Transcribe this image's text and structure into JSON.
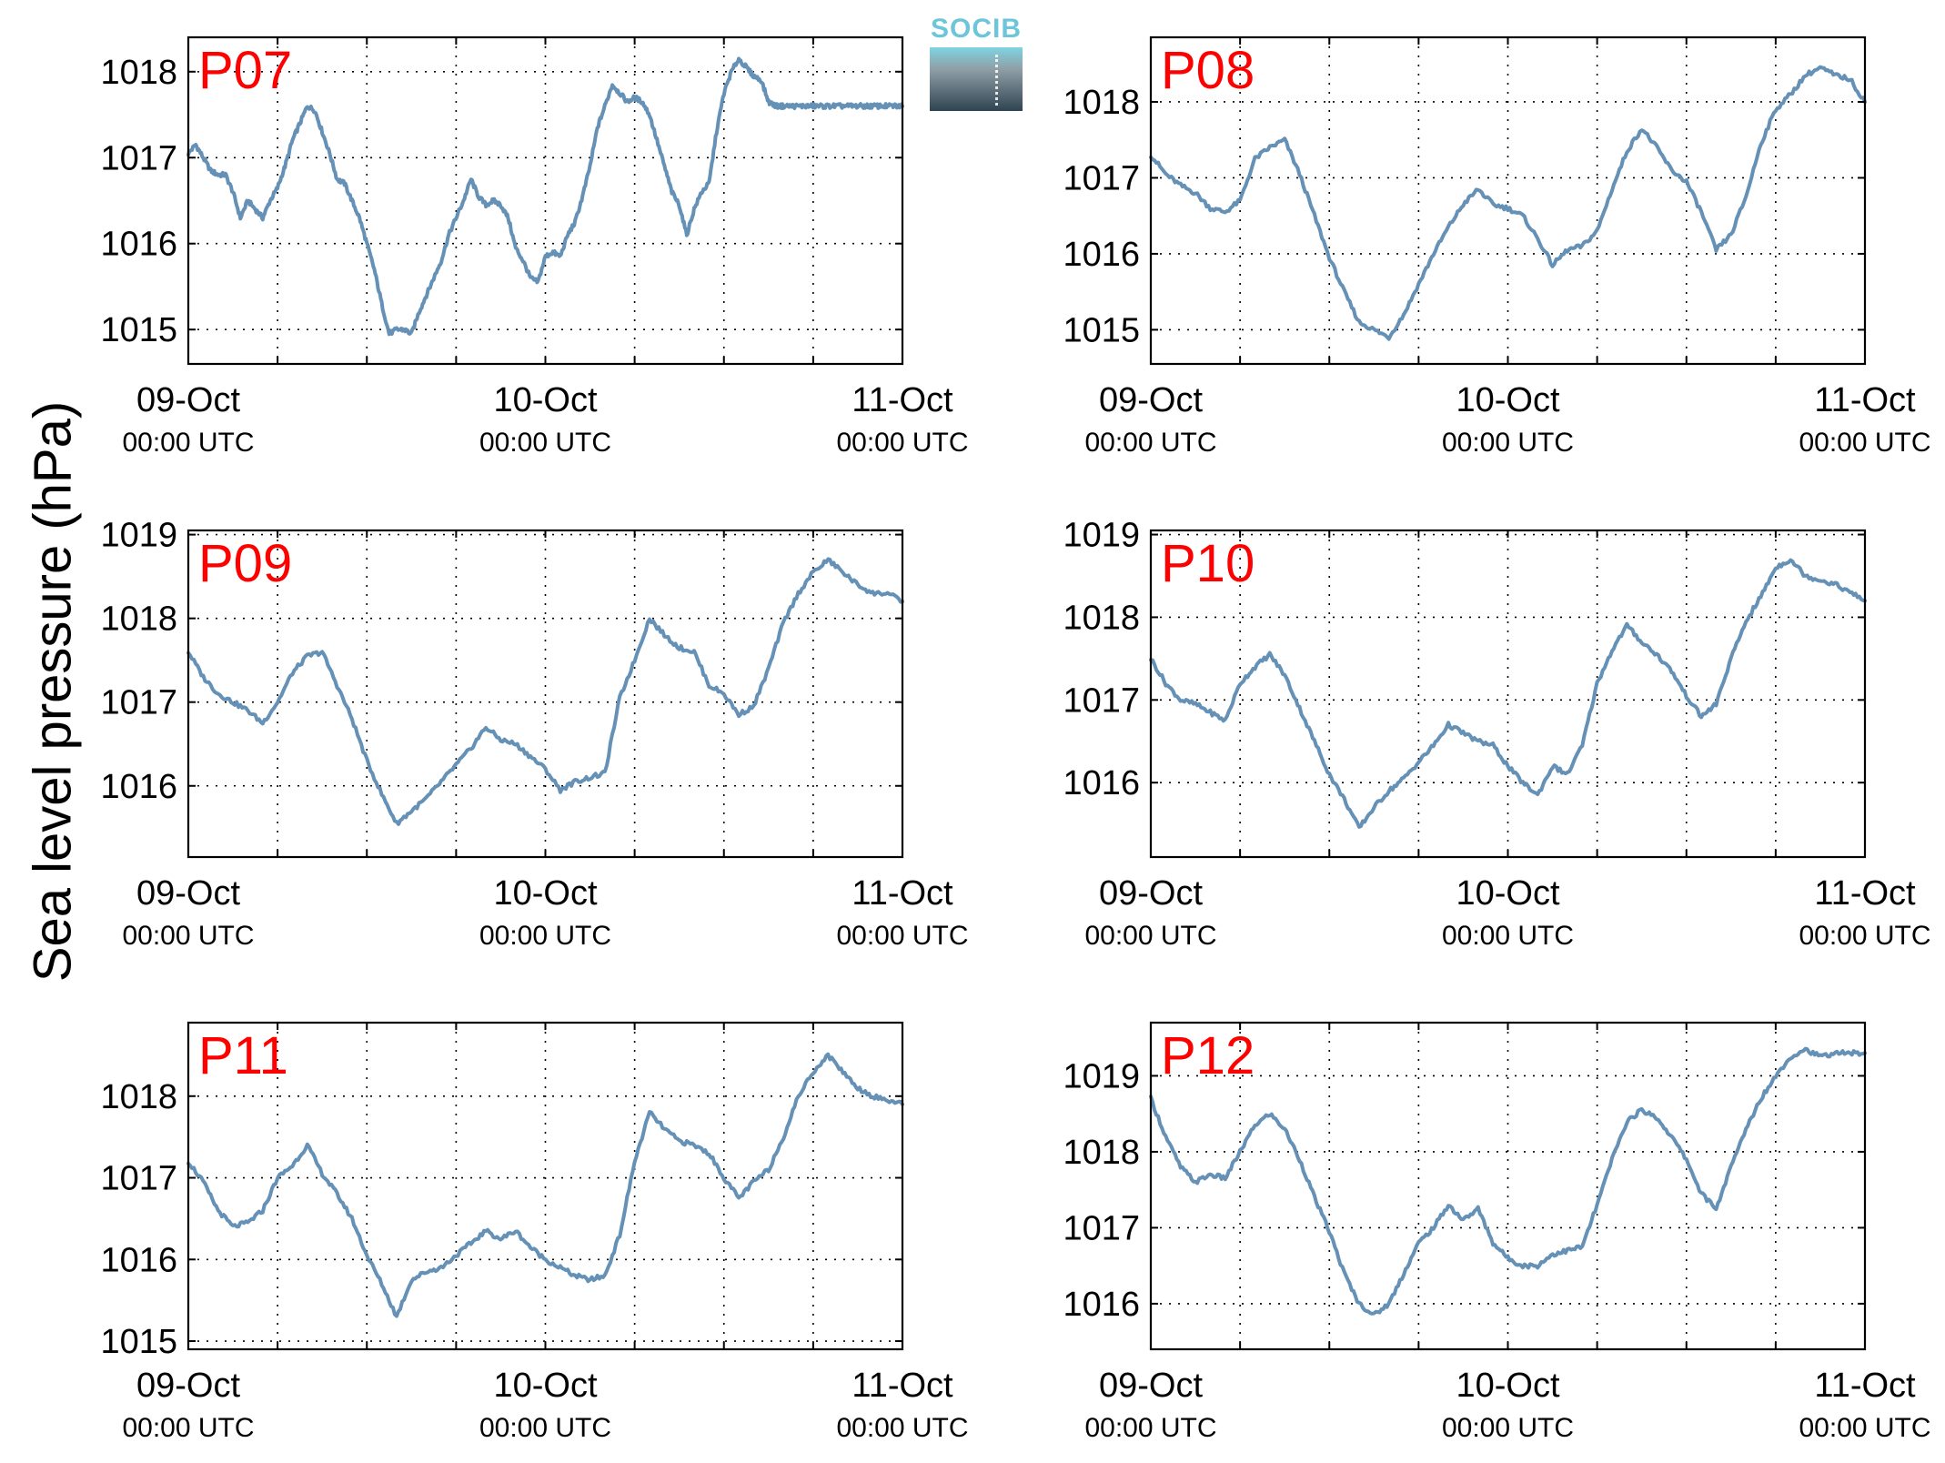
{
  "figure": {
    "ylabel": "Sea level pressure (hPa)",
    "logo_text": "SOCIB",
    "line_color": "#6591b6",
    "panel_label_color": "#ff0000",
    "x_ticks": [
      {
        "date": "09-Oct",
        "time": "00:00 UTC"
      },
      {
        "date": "10-Oct",
        "time": "00:00 UTC"
      },
      {
        "date": "11-Oct",
        "time": "00:00 UTC"
      }
    ]
  },
  "chart_data": [
    {
      "type": "line",
      "title": "P07",
      "xlabel": "",
      "ylabel": "Sea level pressure (hPa)",
      "xlim_hours": [
        0,
        48
      ],
      "ylim": [
        1014.6,
        1018.4
      ],
      "yticks": [
        1015,
        1016,
        1017,
        1018
      ],
      "grid": true,
      "series": [
        {
          "x_hours": [
            0,
            0.5,
            1,
            1.5,
            2,
            2.5,
            3,
            3.5,
            4,
            4.5,
            5,
            5.5,
            6,
            6.5,
            7,
            7.5,
            8,
            8.5,
            9,
            9.5,
            10,
            10.5,
            11,
            11.5,
            12,
            12.5,
            13,
            13.5,
            14,
            14.5,
            15,
            15.5,
            16,
            16.5,
            17,
            17.5,
            18,
            18.5,
            19,
            19.5,
            20,
            20.5,
            21,
            21.5,
            22,
            22.5,
            23,
            23.5,
            24,
            24.5,
            25,
            25.5,
            26,
            26.5,
            27,
            27.5,
            28,
            28.5,
            29,
            29.5,
            30,
            30.5,
            31,
            31.5,
            32,
            32.5,
            33,
            33.5,
            34,
            34.5,
            35,
            35.5,
            36,
            36.5,
            37,
            37.5,
            38,
            38.5,
            39,
            39.5,
            40,
            40.5,
            41,
            41.5,
            42,
            42.5,
            43,
            43.5,
            44,
            44.5,
            45,
            45.5,
            46,
            46.5,
            47,
            47.5,
            48
          ],
          "values": [
            1017.05,
            1017.15,
            1017.0,
            1016.85,
            1016.8,
            1016.8,
            1016.6,
            1016.3,
            1016.5,
            1016.4,
            1016.3,
            1016.5,
            1016.65,
            1016.9,
            1017.2,
            1017.4,
            1017.6,
            1017.55,
            1017.3,
            1017.05,
            1016.75,
            1016.7,
            1016.5,
            1016.3,
            1016.0,
            1015.7,
            1015.3,
            1014.95,
            1015.0,
            1015.0,
            1014.95,
            1015.2,
            1015.4,
            1015.6,
            1015.8,
            1016.1,
            1016.3,
            1016.5,
            1016.75,
            1016.55,
            1016.45,
            1016.5,
            1016.45,
            1016.3,
            1015.95,
            1015.8,
            1015.6,
            1015.55,
            1015.85,
            1015.9,
            1015.85,
            1016.1,
            1016.25,
            1016.55,
            1016.9,
            1017.35,
            1017.6,
            1017.85,
            1017.75,
            1017.65,
            1017.7,
            1017.65,
            1017.5,
            1017.2,
            1016.9,
            1016.6,
            1016.45,
            1016.1,
            1016.4,
            1016.6,
            1016.7,
            1017.3,
            1017.75,
            1018.0,
            1018.15,
            1018.05,
            1017.95,
            1017.9,
            1017.65,
            1017.6,
            1017.6,
            1017.6,
            1017.6,
            1017.6,
            1017.6,
            1017.6,
            1017.6,
            1017.6,
            1017.6,
            1017.6,
            1017.6,
            1017.6,
            1017.6,
            1017.6,
            1017.6,
            1017.6,
            1017.6
          ]
        }
      ]
    },
    {
      "type": "line",
      "title": "P08",
      "xlabel": "",
      "ylabel": "",
      "xlim_hours": [
        0,
        48
      ],
      "ylim": [
        1014.55,
        1018.85
      ],
      "yticks": [
        1015,
        1016,
        1017,
        1018
      ],
      "grid": true,
      "series": [
        {
          "x_hours": [
            0,
            1,
            2,
            3,
            4,
            5,
            6,
            7,
            8,
            9,
            10,
            11,
            12,
            13,
            14,
            15,
            16,
            17,
            18,
            19,
            20,
            21,
            22,
            23,
            24,
            25,
            26,
            27,
            28,
            29,
            30,
            31,
            32,
            33,
            34,
            35,
            36,
            37,
            38,
            39,
            40,
            41,
            42,
            43,
            44,
            45,
            46,
            47,
            48
          ],
          "values": [
            1017.3,
            1017.05,
            1016.9,
            1016.8,
            1016.6,
            1016.55,
            1016.7,
            1017.25,
            1017.4,
            1017.5,
            1017.05,
            1016.5,
            1015.95,
            1015.5,
            1015.1,
            1015.0,
            1014.9,
            1015.2,
            1015.6,
            1016.0,
            1016.35,
            1016.65,
            1016.85,
            1016.65,
            1016.6,
            1016.5,
            1016.2,
            1015.85,
            1016.05,
            1016.1,
            1016.3,
            1016.85,
            1017.35,
            1017.65,
            1017.4,
            1017.1,
            1016.95,
            1016.55,
            1016.05,
            1016.25,
            1016.75,
            1017.45,
            1017.9,
            1018.1,
            1018.35,
            1018.45,
            1018.35,
            1018.3,
            1018.0
          ]
        }
      ]
    },
    {
      "type": "line",
      "title": "P09",
      "xlabel": "",
      "ylabel": "",
      "xlim_hours": [
        0,
        48
      ],
      "ylim": [
        1015.15,
        1019.05
      ],
      "yticks": [
        1016,
        1017,
        1018,
        1019
      ],
      "grid": true,
      "series": [
        {
          "x_hours": [
            0,
            1,
            2,
            3,
            4,
            5,
            6,
            7,
            8,
            9,
            10,
            11,
            12,
            13,
            14,
            15,
            16,
            17,
            18,
            19,
            20,
            21,
            22,
            23,
            24,
            25,
            26,
            27,
            28,
            29,
            30,
            31,
            32,
            33,
            34,
            35,
            36,
            37,
            38,
            39,
            40,
            41,
            42,
            43,
            44,
            45,
            46,
            47,
            48
          ],
          "values": [
            1017.6,
            1017.3,
            1017.1,
            1017.0,
            1016.9,
            1016.75,
            1017.0,
            1017.35,
            1017.55,
            1017.6,
            1017.2,
            1016.8,
            1016.3,
            1015.9,
            1015.55,
            1015.7,
            1015.85,
            1016.05,
            1016.25,
            1016.45,
            1016.7,
            1016.55,
            1016.5,
            1016.35,
            1016.2,
            1015.95,
            1016.05,
            1016.1,
            1016.15,
            1017.05,
            1017.5,
            1018.0,
            1017.8,
            1017.65,
            1017.6,
            1017.2,
            1017.1,
            1016.85,
            1016.95,
            1017.4,
            1017.95,
            1018.3,
            1018.55,
            1018.7,
            1018.55,
            1018.4,
            1018.3,
            1018.3,
            1018.2
          ]
        }
      ]
    },
    {
      "type": "line",
      "title": "P10",
      "xlabel": "",
      "ylabel": "",
      "xlim_hours": [
        0,
        48
      ],
      "ylim": [
        1015.1,
        1019.05
      ],
      "yticks": [
        1016,
        1017,
        1018,
        1019
      ],
      "grid": true,
      "series": [
        {
          "x_hours": [
            0,
            1,
            2,
            3,
            4,
            5,
            6,
            7,
            8,
            9,
            10,
            11,
            12,
            13,
            14,
            15,
            16,
            17,
            18,
            19,
            20,
            21,
            22,
            23,
            24,
            25,
            26,
            27,
            28,
            29,
            30,
            31,
            32,
            33,
            34,
            35,
            36,
            37,
            38,
            39,
            40,
            41,
            42,
            43,
            44,
            45,
            46,
            47,
            48
          ],
          "values": [
            1017.5,
            1017.2,
            1017.0,
            1016.95,
            1016.85,
            1016.75,
            1017.2,
            1017.4,
            1017.55,
            1017.3,
            1016.9,
            1016.5,
            1016.1,
            1015.8,
            1015.45,
            1015.7,
            1015.9,
            1016.05,
            1016.25,
            1016.45,
            1016.7,
            1016.6,
            1016.5,
            1016.45,
            1016.2,
            1016.0,
            1015.85,
            1016.2,
            1016.1,
            1016.45,
            1017.2,
            1017.6,
            1017.9,
            1017.7,
            1017.55,
            1017.35,
            1017.05,
            1016.8,
            1016.95,
            1017.5,
            1017.95,
            1018.25,
            1018.6,
            1018.7,
            1018.5,
            1018.45,
            1018.4,
            1018.3,
            1018.2
          ]
        }
      ]
    },
    {
      "type": "line",
      "title": "P11",
      "xlabel": "",
      "ylabel": "",
      "xlim_hours": [
        0,
        48
      ],
      "ylim": [
        1014.9,
        1018.9
      ],
      "yticks": [
        1015,
        1016,
        1017,
        1018
      ],
      "grid": true,
      "series": [
        {
          "x_hours": [
            0,
            1,
            2,
            3,
            4,
            5,
            6,
            7,
            8,
            9,
            10,
            11,
            12,
            13,
            14,
            15,
            16,
            17,
            18,
            19,
            20,
            21,
            22,
            23,
            24,
            25,
            26,
            27,
            28,
            29,
            30,
            31,
            32,
            33,
            34,
            35,
            36,
            37,
            38,
            39,
            40,
            41,
            42,
            43,
            44,
            45,
            46,
            47,
            48
          ],
          "values": [
            1017.2,
            1016.95,
            1016.6,
            1016.4,
            1016.45,
            1016.6,
            1017.0,
            1017.15,
            1017.4,
            1017.05,
            1016.8,
            1016.5,
            1016.05,
            1015.7,
            1015.3,
            1015.75,
            1015.85,
            1015.9,
            1016.05,
            1016.2,
            1016.35,
            1016.25,
            1016.35,
            1016.15,
            1016.0,
            1015.9,
            1015.8,
            1015.75,
            1015.8,
            1016.3,
            1017.2,
            1017.8,
            1017.6,
            1017.45,
            1017.4,
            1017.3,
            1017.0,
            1016.75,
            1016.95,
            1017.1,
            1017.5,
            1018.0,
            1018.3,
            1018.5,
            1018.3,
            1018.1,
            1018.0,
            1017.95,
            1017.9
          ]
        }
      ]
    },
    {
      "type": "line",
      "title": "P12",
      "xlabel": "",
      "ylabel": "",
      "xlim_hours": [
        0,
        48
      ],
      "ylim": [
        1015.4,
        1019.7
      ],
      "yticks": [
        1016,
        1017,
        1018,
        1019
      ],
      "grid": true,
      "series": [
        {
          "x_hours": [
            0,
            1,
            2,
            3,
            4,
            5,
            6,
            7,
            8,
            9,
            10,
            11,
            12,
            13,
            14,
            15,
            16,
            17,
            18,
            19,
            20,
            21,
            22,
            23,
            24,
            25,
            26,
            27,
            28,
            29,
            30,
            31,
            32,
            33,
            34,
            35,
            36,
            37,
            38,
            39,
            40,
            41,
            42,
            43,
            44,
            45,
            46,
            47,
            48
          ],
          "values": [
            1018.7,
            1018.2,
            1017.8,
            1017.6,
            1017.7,
            1017.65,
            1018.0,
            1018.35,
            1018.5,
            1018.3,
            1017.9,
            1017.4,
            1016.95,
            1016.4,
            1016.0,
            1015.85,
            1016.0,
            1016.4,
            1016.8,
            1017.0,
            1017.3,
            1017.1,
            1017.25,
            1016.8,
            1016.6,
            1016.5,
            1016.5,
            1016.65,
            1016.7,
            1016.75,
            1017.3,
            1017.9,
            1018.4,
            1018.55,
            1018.45,
            1018.2,
            1017.9,
            1017.45,
            1017.25,
            1017.8,
            1018.3,
            1018.7,
            1019.0,
            1019.25,
            1019.35,
            1019.25,
            1019.3,
            1019.3,
            1019.3
          ]
        }
      ]
    }
  ]
}
